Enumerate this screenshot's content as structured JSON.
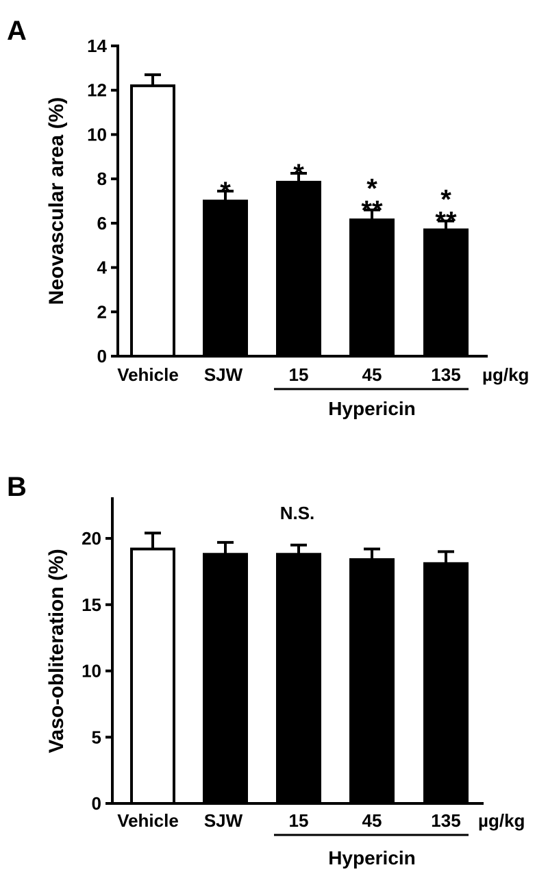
{
  "chart_data": [
    {
      "panel_label": "A",
      "type": "bar",
      "categories": [
        "Vehicle",
        "SJW",
        "15",
        "45",
        "135"
      ],
      "values": [
        12.2,
        7.0,
        7.85,
        6.15,
        5.7
      ],
      "errors": [
        0.5,
        0.45,
        0.4,
        0.45,
        0.4
      ],
      "fill": [
        "open",
        "filled",
        "filled",
        "filled",
        "filled"
      ],
      "significance": [
        "",
        "*",
        "*",
        "*\n**",
        "*\n**"
      ],
      "ylabel": "Neovascular area (%)",
      "ylim": [
        0,
        14
      ],
      "yticks": [
        0,
        2,
        4,
        6,
        8,
        10,
        12,
        14
      ],
      "unit_label": "µg/kg",
      "group_label": "Hypericin",
      "group_members": [
        "15",
        "45",
        "135"
      ],
      "annotation": ""
    },
    {
      "panel_label": "B",
      "type": "bar",
      "categories": [
        "Vehicle",
        "SJW",
        "15",
        "45",
        "135"
      ],
      "values": [
        19.2,
        18.8,
        18.8,
        18.4,
        18.1
      ],
      "errors": [
        1.2,
        0.9,
        0.7,
        0.8,
        0.9
      ],
      "fill": [
        "open",
        "filled",
        "filled",
        "filled",
        "filled"
      ],
      "significance": [
        "",
        "",
        "",
        "",
        ""
      ],
      "ylabel": "Vaso-obliteration (%)",
      "ylim": [
        0,
        23
      ],
      "yticks": [
        0,
        5,
        10,
        15,
        20
      ],
      "unit_label": "µg/kg",
      "group_label": "Hypericin",
      "group_members": [
        "15",
        "45",
        "135"
      ],
      "annotation": "N.S."
    }
  ],
  "colors": {
    "open_fill": "#ffffff",
    "filled_fill": "#000000",
    "stroke": "#000000"
  }
}
